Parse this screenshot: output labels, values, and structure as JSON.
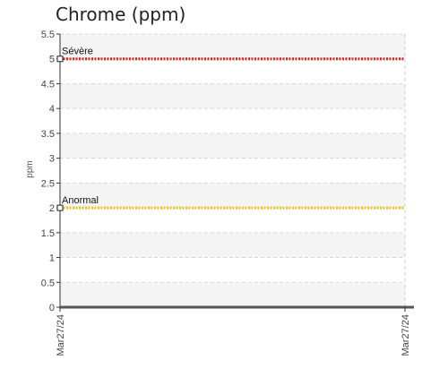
{
  "chart_data": {
    "type": "line",
    "title": "Chrome (ppm)",
    "ylabel": "ppm",
    "xlabel": "",
    "ylim": [
      0,
      5.5
    ],
    "yticks": [
      0,
      0.5,
      1,
      1.5,
      2,
      2.5,
      3,
      3.5,
      4,
      4.5,
      5,
      5.5
    ],
    "x_tick_labels": [
      "Mar27/24",
      "Mar27/24"
    ],
    "grid": true,
    "series": [
      {
        "name": "Sévère",
        "values": [
          5,
          5
        ],
        "color": "#e0201c",
        "style": "dotted"
      },
      {
        "name": "Anormal",
        "values": [
          2,
          2
        ],
        "color": "#f2c21b",
        "style": "dotted"
      }
    ],
    "baseline": {
      "value": 0,
      "color": "#555555"
    }
  }
}
